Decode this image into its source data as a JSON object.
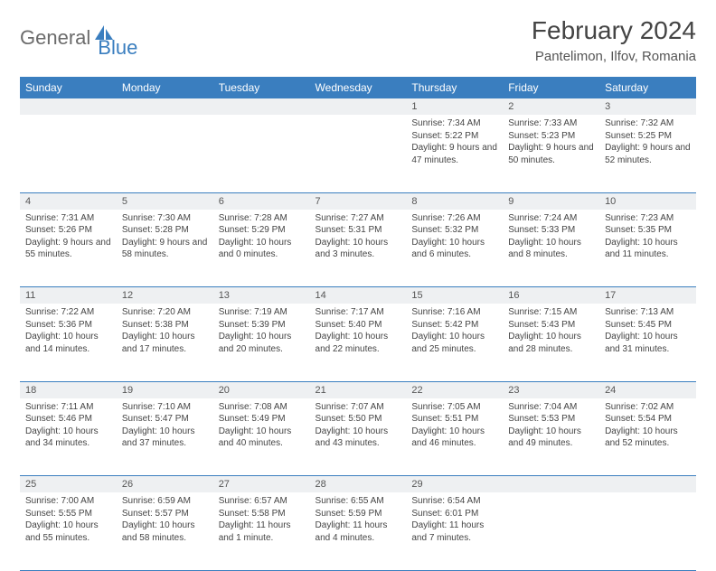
{
  "logo": {
    "text1": "General",
    "text2": "Blue"
  },
  "title": "February 2024",
  "location": "Pantelimon, Ilfov, Romania",
  "weekdays": [
    "Sunday",
    "Monday",
    "Tuesday",
    "Wednesday",
    "Thursday",
    "Friday",
    "Saturday"
  ],
  "colors": {
    "header_bg": "#3a7ebf",
    "daynum_bg": "#eef0f2",
    "text": "#444444"
  },
  "weeks": [
    [
      null,
      null,
      null,
      null,
      {
        "n": "1",
        "sr": "7:34 AM",
        "ss": "5:22 PM",
        "dl": "9 hours and 47 minutes."
      },
      {
        "n": "2",
        "sr": "7:33 AM",
        "ss": "5:23 PM",
        "dl": "9 hours and 50 minutes."
      },
      {
        "n": "3",
        "sr": "7:32 AM",
        "ss": "5:25 PM",
        "dl": "9 hours and 52 minutes."
      }
    ],
    [
      {
        "n": "4",
        "sr": "7:31 AM",
        "ss": "5:26 PM",
        "dl": "9 hours and 55 minutes."
      },
      {
        "n": "5",
        "sr": "7:30 AM",
        "ss": "5:28 PM",
        "dl": "9 hours and 58 minutes."
      },
      {
        "n": "6",
        "sr": "7:28 AM",
        "ss": "5:29 PM",
        "dl": "10 hours and 0 minutes."
      },
      {
        "n": "7",
        "sr": "7:27 AM",
        "ss": "5:31 PM",
        "dl": "10 hours and 3 minutes."
      },
      {
        "n": "8",
        "sr": "7:26 AM",
        "ss": "5:32 PM",
        "dl": "10 hours and 6 minutes."
      },
      {
        "n": "9",
        "sr": "7:24 AM",
        "ss": "5:33 PM",
        "dl": "10 hours and 8 minutes."
      },
      {
        "n": "10",
        "sr": "7:23 AM",
        "ss": "5:35 PM",
        "dl": "10 hours and 11 minutes."
      }
    ],
    [
      {
        "n": "11",
        "sr": "7:22 AM",
        "ss": "5:36 PM",
        "dl": "10 hours and 14 minutes."
      },
      {
        "n": "12",
        "sr": "7:20 AM",
        "ss": "5:38 PM",
        "dl": "10 hours and 17 minutes."
      },
      {
        "n": "13",
        "sr": "7:19 AM",
        "ss": "5:39 PM",
        "dl": "10 hours and 20 minutes."
      },
      {
        "n": "14",
        "sr": "7:17 AM",
        "ss": "5:40 PM",
        "dl": "10 hours and 22 minutes."
      },
      {
        "n": "15",
        "sr": "7:16 AM",
        "ss": "5:42 PM",
        "dl": "10 hours and 25 minutes."
      },
      {
        "n": "16",
        "sr": "7:15 AM",
        "ss": "5:43 PM",
        "dl": "10 hours and 28 minutes."
      },
      {
        "n": "17",
        "sr": "7:13 AM",
        "ss": "5:45 PM",
        "dl": "10 hours and 31 minutes."
      }
    ],
    [
      {
        "n": "18",
        "sr": "7:11 AM",
        "ss": "5:46 PM",
        "dl": "10 hours and 34 minutes."
      },
      {
        "n": "19",
        "sr": "7:10 AM",
        "ss": "5:47 PM",
        "dl": "10 hours and 37 minutes."
      },
      {
        "n": "20",
        "sr": "7:08 AM",
        "ss": "5:49 PM",
        "dl": "10 hours and 40 minutes."
      },
      {
        "n": "21",
        "sr": "7:07 AM",
        "ss": "5:50 PM",
        "dl": "10 hours and 43 minutes."
      },
      {
        "n": "22",
        "sr": "7:05 AM",
        "ss": "5:51 PM",
        "dl": "10 hours and 46 minutes."
      },
      {
        "n": "23",
        "sr": "7:04 AM",
        "ss": "5:53 PM",
        "dl": "10 hours and 49 minutes."
      },
      {
        "n": "24",
        "sr": "7:02 AM",
        "ss": "5:54 PM",
        "dl": "10 hours and 52 minutes."
      }
    ],
    [
      {
        "n": "25",
        "sr": "7:00 AM",
        "ss": "5:55 PM",
        "dl": "10 hours and 55 minutes."
      },
      {
        "n": "26",
        "sr": "6:59 AM",
        "ss": "5:57 PM",
        "dl": "10 hours and 58 minutes."
      },
      {
        "n": "27",
        "sr": "6:57 AM",
        "ss": "5:58 PM",
        "dl": "11 hours and 1 minute."
      },
      {
        "n": "28",
        "sr": "6:55 AM",
        "ss": "5:59 PM",
        "dl": "11 hours and 4 minutes."
      },
      {
        "n": "29",
        "sr": "6:54 AM",
        "ss": "6:01 PM",
        "dl": "11 hours and 7 minutes."
      },
      null,
      null
    ]
  ],
  "labels": {
    "sunrise": "Sunrise:",
    "sunset": "Sunset:",
    "daylight": "Daylight:"
  }
}
